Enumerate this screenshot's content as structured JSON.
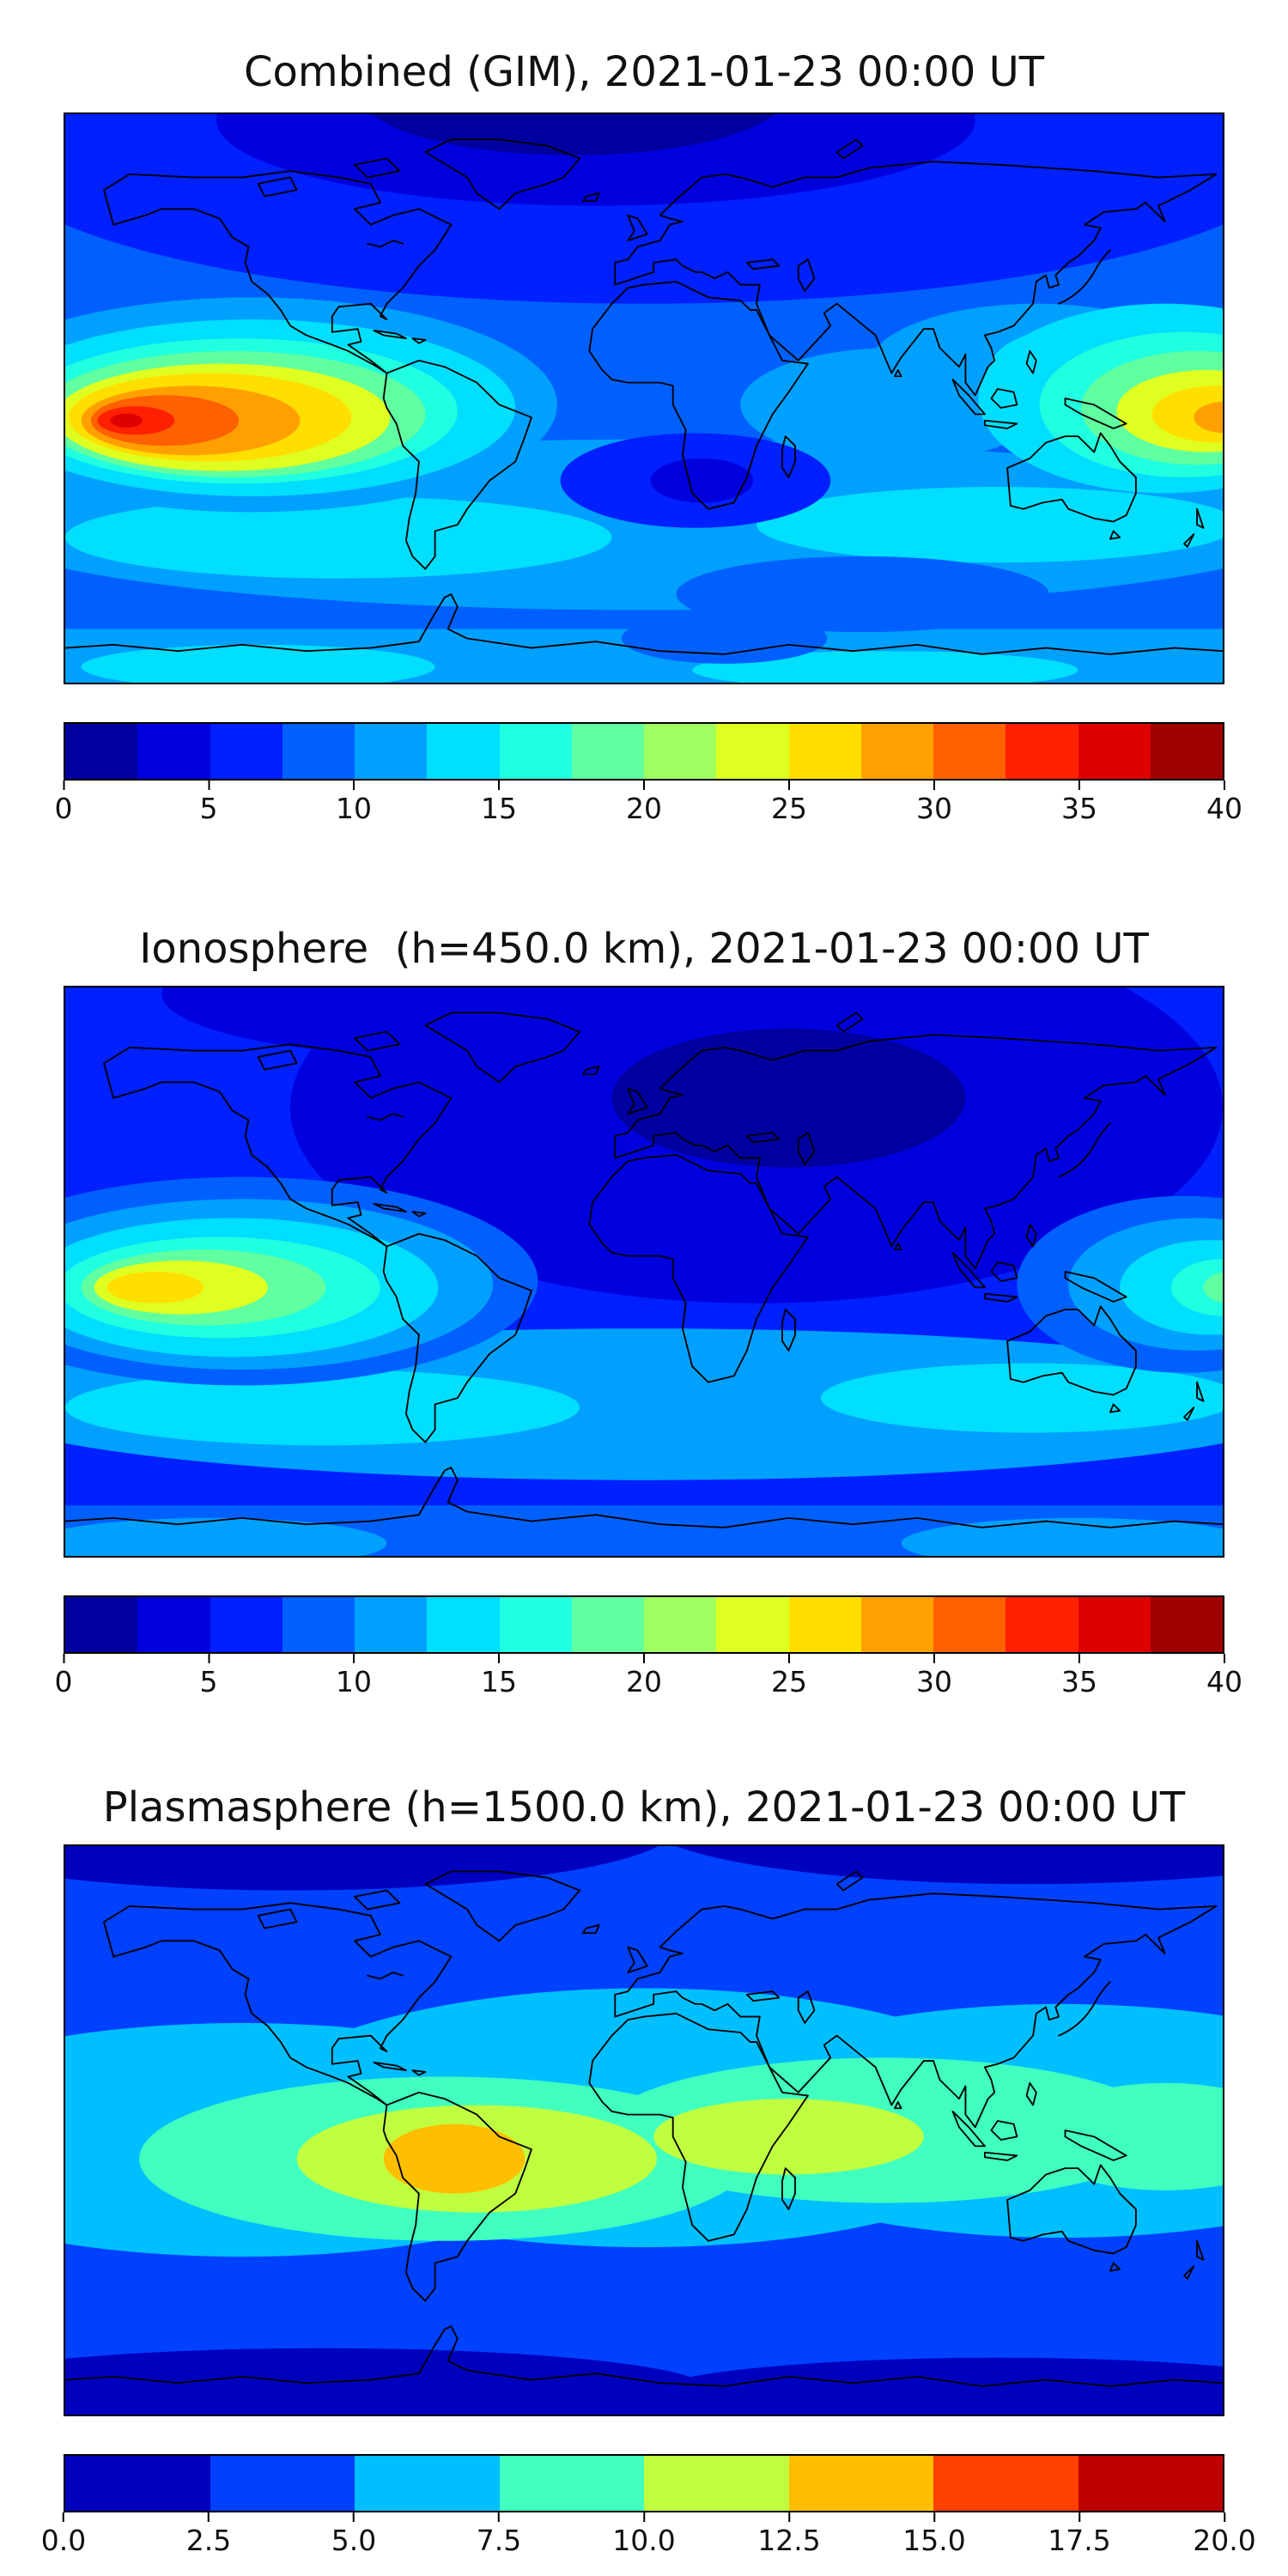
{
  "figure": {
    "kind": "stacked global total-electron-content contour maps",
    "background_color": "#ffffff",
    "n_panels": 3
  },
  "chart_data": [
    {
      "type": "heatmap",
      "subtype": "filled-contour world map, equirectangular projection, lon -180..180, lat -90..90, coastlines drawn in black",
      "title": "Combined (GIM), 2021-01-23 00:00 UT",
      "date": "2021-01-23",
      "time_ut": "00:00 UT",
      "colorbar": {
        "orientation": "horizontal",
        "range": [
          0,
          40
        ],
        "level_step": 2.5,
        "n_levels": 16,
        "tick_labels": [
          "0",
          "5",
          "10",
          "15",
          "20",
          "25",
          "30",
          "35",
          "40"
        ],
        "colors": [
          "#0000A0",
          "#0000DF",
          "#0020FF",
          "#0060FF",
          "#00A0FF",
          "#00DFFF",
          "#20FFDF",
          "#60FFA0",
          "#A0FF60",
          "#DFFF20",
          "#FFDF00",
          "#FFA000",
          "#FF6000",
          "#FF2000",
          "#DF0000",
          "#A00000"
        ]
      },
      "features": [
        {
          "region": "equatorial-anomaly hot spot, eastern Pacific (local-noon sector)",
          "approx_lon": -135,
          "approx_lat": -8,
          "approx_peak_value": 37
        },
        {
          "region": "secondary hot spot at right map edge, far western Pacific",
          "approx_lon": 170,
          "approx_lat": -10,
          "approx_peak_value": 28
        },
        {
          "region": "north polar minimum",
          "approx_lon": -20,
          "approx_lat": 80,
          "approx_value": 2
        },
        {
          "region": "south Atlantic / south of Africa low with dark core",
          "approx_lon": 18,
          "approx_lat": -27,
          "approx_value": 5
        },
        {
          "region": "southern mid-latitude cyan band",
          "approx_lat": -45,
          "approx_value": 12
        },
        {
          "region": "Antarctic coastal band",
          "approx_lat": -75,
          "approx_value": 12
        }
      ]
    },
    {
      "type": "heatmap",
      "subtype": "filled-contour world map, equirectangular projection, lon -180..180, lat -90..90, coastlines drawn in black",
      "title": "Ionosphere  (h=450.0 km), 2021-01-23 00:00 UT",
      "height_km": 450.0,
      "date": "2021-01-23",
      "time_ut": "00:00 UT",
      "colorbar": {
        "orientation": "horizontal",
        "range": [
          0,
          40
        ],
        "level_step": 2.5,
        "n_levels": 16,
        "tick_labels": [
          "0",
          "5",
          "10",
          "15",
          "20",
          "25",
          "30",
          "35",
          "40"
        ],
        "colors": [
          "#0000A0",
          "#0000DF",
          "#0020FF",
          "#0060FF",
          "#00A0FF",
          "#00DFFF",
          "#20FFDF",
          "#60FFA0",
          "#A0FF60",
          "#DFFF20",
          "#FFDF00",
          "#FFA000",
          "#FF6000",
          "#FF2000",
          "#DF0000",
          "#A00000"
        ]
      },
      "features": [
        {
          "region": "equatorial-anomaly hot spot, eastern Pacific",
          "approx_lon": -145,
          "approx_lat": -5,
          "approx_peak_value": 22
        },
        {
          "region": "weaker maximum at right map edge, western Pacific",
          "approx_lon": 178,
          "approx_lat": -5,
          "approx_peak_value": 18
        },
        {
          "region": "broad dark-blue minimum over Atlantic, Europe and Africa",
          "approx_lon": 25,
          "approx_lat": 30,
          "approx_value": 3
        },
        {
          "region": "southern mid-latitude cyan band",
          "approx_lat": -45,
          "approx_value": 11
        },
        {
          "region": "Antarctic band",
          "approx_lat": -78,
          "approx_value": 8
        }
      ]
    },
    {
      "type": "heatmap",
      "subtype": "filled-contour world map, equirectangular projection, lon -180..180, lat -90..90, coastlines drawn in black",
      "title": "Plasmasphere (h=1500.0 km), 2021-01-23 00:00 UT",
      "height_km": 1500.0,
      "date": "2021-01-23",
      "time_ut": "00:00 UT",
      "colorbar": {
        "orientation": "horizontal",
        "range": [
          0,
          20
        ],
        "level_step": 2.5,
        "n_levels": 8,
        "tick_labels": [
          "0.0",
          "2.5",
          "5.0",
          "7.5",
          "10.0",
          "12.5",
          "15.0",
          "17.5",
          "20.0"
        ],
        "colors": [
          "#0000BF",
          "#0040FF",
          "#00BFFF",
          "#40FFBF",
          "#BFFF40",
          "#FFBF00",
          "#FF4000",
          "#BF0000"
        ]
      },
      "features": [
        {
          "region": "equatorial plasmaspheric bulge maximum over South America",
          "approx_lon": -60,
          "approx_lat": -9,
          "approx_peak_value": 14
        },
        {
          "region": "yellow-green lobe over Atlantic and central Africa",
          "approx_lon": 25,
          "approx_lat": -2,
          "approx_value": 11
        },
        {
          "region": "green-cyan equatorial band spanning the map",
          "approx_lat": 0,
          "approx_value": 8
        },
        {
          "region": "cyan mid-latitude band",
          "approx_lat": 25,
          "approx_value": 6
        },
        {
          "region": "dark-blue polar bands top and bottom",
          "approx_lat": 75,
          "approx_value": 2
        }
      ]
    }
  ]
}
